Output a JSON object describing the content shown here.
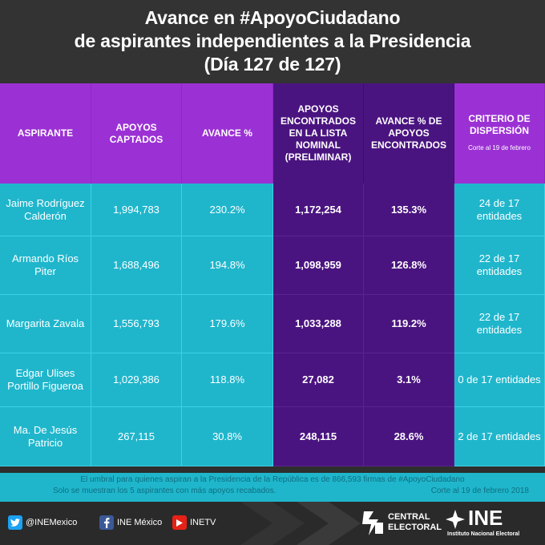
{
  "title": {
    "line1": "Avance en #ApoyoCiudadano",
    "line2": "de aspirantes independientes a la Presidencia",
    "line3": "(Día 127 de 127)"
  },
  "columns": {
    "aspirante": "ASPIRANTE",
    "apoyos_captados": "APOYOS CAPTADOS",
    "avance": "AVANCE %",
    "apoyos_encontrados": "APOYOS ENCONTRADOS EN LA LISTA NOMINAL (PRELIMINAR)",
    "avance_encontrados": "AVANCE % DE APOYOS ENCONTRADOS",
    "criterio": "CRITERIO DE DISPERSIÓN",
    "criterio_sub": "Corte al 19 de febrero"
  },
  "rows": [
    {
      "name": "Jaime Rodríguez Calderón",
      "captados": "1,994,783",
      "avance": "230.2%",
      "encontrados": "1,172,254",
      "avance_enc": "135.3%",
      "criterio": "24 de 17 entidades"
    },
    {
      "name": "Armando Ríos Piter",
      "captados": "1,688,496",
      "avance": "194.8%",
      "encontrados": "1,098,959",
      "avance_enc": "126.8%",
      "criterio": "22 de 17 entidades"
    },
    {
      "name": "Margarita Zavala",
      "captados": "1,556,793",
      "avance": "179.6%",
      "encontrados": "1,033,288",
      "avance_enc": "119.2%",
      "criterio": "22 de 17 entidades"
    },
    {
      "name": "Edgar Ulises Portillo Figueroa",
      "captados": "1,029,386",
      "avance": "118.8%",
      "encontrados": "27,082",
      "avance_enc": "3.1%",
      "criterio": "0 de 17 entidades"
    },
    {
      "name": "Ma. De Jesús Patricio",
      "captados": "267,115",
      "avance": "30.8%",
      "encontrados": "248,115",
      "avance_enc": "28.6%",
      "criterio": "2 de 17 entidades"
    }
  ],
  "notes": {
    "line1": "El umbral para quienes aspiran a la Presidencia de la República es de 866,593 firmas de #ApoyoCiudadano",
    "line2": "Solo se muestran los 5 aspirantes con más apoyos recabados.",
    "cutoff": "Corte al 19 de febrero 2018"
  },
  "footer": {
    "twitter": "@INEMexico",
    "facebook": "INE México",
    "youtube": "INETV",
    "central_1": "CENTRAL",
    "central_2": "ELECTORAL",
    "ine": "INE",
    "ine_sub": "Instituto Nacional Electoral"
  },
  "colors": {
    "header_bg": "#333333",
    "purple": "#9b31d4",
    "dark_purple": "#4a1480",
    "cyan": "#1fb6cc"
  }
}
